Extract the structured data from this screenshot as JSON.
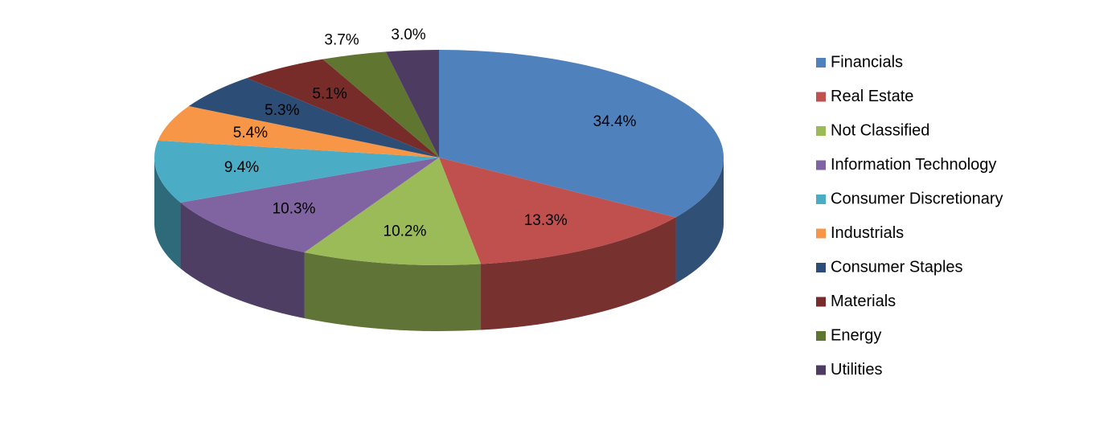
{
  "chart_data": {
    "type": "pie",
    "categories": [
      "Financials",
      "Real Estate",
      "Not Classified",
      "Information Technology",
      "Consumer Discretionary",
      "Industrials",
      "Consumer Staples",
      "Materials",
      "Energy",
      "Utilities"
    ],
    "values": [
      34.4,
      13.3,
      10.2,
      10.3,
      9.4,
      5.4,
      5.3,
      5.1,
      3.7,
      3.0
    ],
    "value_labels": [
      "34.4%",
      "13.3%",
      "10.2%",
      "10.3%",
      "9.4%",
      "5.4%",
      "5.3%",
      "5.1%",
      "3.7%",
      "3.0%"
    ],
    "colors": [
      "#4f81bd",
      "#c0504d",
      "#9bbb59",
      "#8064a2",
      "#4bacc6",
      "#f79646",
      "#2c4d75",
      "#772c2a",
      "#5f7530",
      "#4d3b62"
    ],
    "legend": "right"
  }
}
